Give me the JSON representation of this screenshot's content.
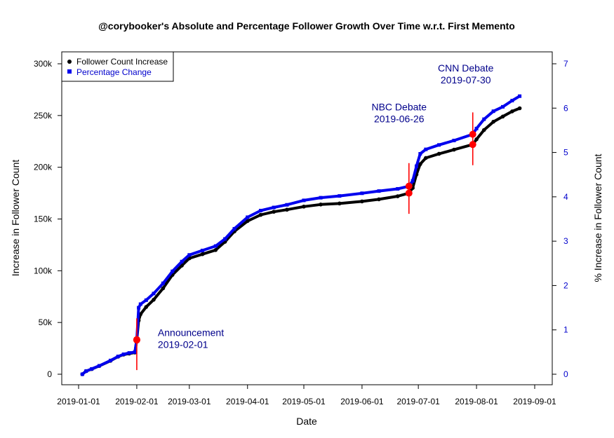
{
  "chart_data": {
    "type": "scatter",
    "title": "@corybooker's Absolute and Percentage Follower Growth Over Time w.r.t. First Memento",
    "xlabel": "Date",
    "ylabel_left": "Increase in Follower Count",
    "ylabel_right": "% Increase in Follower Count",
    "x_ticks": [
      "2019-01-01",
      "2019-02-01",
      "2019-03-01",
      "2019-04-01",
      "2019-05-01",
      "2019-06-01",
      "2019-07-01",
      "2019-08-01",
      "2019-09-01"
    ],
    "y_ticks_left": [
      "0",
      "50k",
      "100k",
      "150k",
      "200k",
      "250k",
      "300k"
    ],
    "y_ticks_left_values": [
      0,
      50000,
      100000,
      150000,
      200000,
      250000,
      300000
    ],
    "y_ticks_right": [
      "0",
      "1",
      "2",
      "3",
      "4",
      "5",
      "6",
      "7"
    ],
    "y_ticks_right_values": [
      0,
      1,
      2,
      3,
      4,
      5,
      6,
      7
    ],
    "xlim": [
      "2019-01-01",
      "2019-09-01"
    ],
    "ylim_left": [
      0,
      300000
    ],
    "ylim_right": [
      0,
      7
    ],
    "legend_position": "top-left",
    "series": [
      {
        "name": "Follower Count Increase",
        "axis": "left",
        "color": "#000000",
        "marker": "circle",
        "points": [
          [
            "2019-01-03",
            0
          ],
          [
            "2019-01-05",
            3000
          ],
          [
            "2019-01-08",
            5000
          ],
          [
            "2019-01-12",
            8000
          ],
          [
            "2019-01-18",
            13000
          ],
          [
            "2019-01-22",
            17000
          ],
          [
            "2019-01-25",
            19000
          ],
          [
            "2019-01-28",
            20000
          ],
          [
            "2019-01-31",
            21000
          ],
          [
            "2019-02-01",
            33000
          ],
          [
            "2019-02-02",
            52000
          ],
          [
            "2019-02-03",
            58000
          ],
          [
            "2019-02-06",
            65000
          ],
          [
            "2019-02-10",
            72000
          ],
          [
            "2019-02-15",
            83000
          ],
          [
            "2019-02-20",
            96000
          ],
          [
            "2019-02-25",
            105000
          ],
          [
            "2019-03-01",
            112000
          ],
          [
            "2019-03-08",
            116000
          ],
          [
            "2019-03-15",
            120000
          ],
          [
            "2019-03-20",
            128000
          ],
          [
            "2019-03-25",
            138000
          ],
          [
            "2019-04-01",
            148000
          ],
          [
            "2019-04-08",
            154000
          ],
          [
            "2019-04-15",
            157000
          ],
          [
            "2019-04-22",
            159000
          ],
          [
            "2019-05-01",
            162000
          ],
          [
            "2019-05-10",
            164000
          ],
          [
            "2019-05-20",
            165000
          ],
          [
            "2019-06-01",
            167000
          ],
          [
            "2019-06-10",
            169000
          ],
          [
            "2019-06-20",
            172000
          ],
          [
            "2019-06-26",
            175000
          ],
          [
            "2019-06-28",
            180000
          ],
          [
            "2019-06-30",
            193000
          ],
          [
            "2019-07-02",
            203000
          ],
          [
            "2019-07-05",
            209000
          ],
          [
            "2019-07-12",
            213000
          ],
          [
            "2019-07-20",
            217000
          ],
          [
            "2019-07-30",
            222000
          ],
          [
            "2019-08-01",
            227000
          ],
          [
            "2019-08-05",
            236000
          ],
          [
            "2019-08-10",
            244000
          ],
          [
            "2019-08-15",
            249000
          ],
          [
            "2019-08-20",
            254000
          ],
          [
            "2019-08-24",
            257000
          ]
        ]
      },
      {
        "name": "Percentage Change",
        "axis": "right",
        "color": "#0000ee",
        "marker": "square",
        "points": [
          [
            "2019-01-03",
            0
          ],
          [
            "2019-01-05",
            0.07
          ],
          [
            "2019-01-08",
            0.12
          ],
          [
            "2019-01-12",
            0.19
          ],
          [
            "2019-01-18",
            0.31
          ],
          [
            "2019-01-22",
            0.4
          ],
          [
            "2019-01-25",
            0.45
          ],
          [
            "2019-01-28",
            0.48
          ],
          [
            "2019-01-31",
            0.5
          ],
          [
            "2019-02-01",
            0.78
          ],
          [
            "2019-02-02",
            1.5
          ],
          [
            "2019-02-03",
            1.58
          ],
          [
            "2019-02-06",
            1.67
          ],
          [
            "2019-02-10",
            1.82
          ],
          [
            "2019-02-15",
            2.05
          ],
          [
            "2019-02-20",
            2.32
          ],
          [
            "2019-02-25",
            2.54
          ],
          [
            "2019-03-01",
            2.69
          ],
          [
            "2019-03-08",
            2.79
          ],
          [
            "2019-03-15",
            2.89
          ],
          [
            "2019-03-20",
            3.05
          ],
          [
            "2019-03-25",
            3.28
          ],
          [
            "2019-04-01",
            3.54
          ],
          [
            "2019-04-08",
            3.69
          ],
          [
            "2019-04-15",
            3.76
          ],
          [
            "2019-04-22",
            3.82
          ],
          [
            "2019-05-01",
            3.92
          ],
          [
            "2019-05-10",
            3.98
          ],
          [
            "2019-05-20",
            4.02
          ],
          [
            "2019-06-01",
            4.08
          ],
          [
            "2019-06-10",
            4.13
          ],
          [
            "2019-06-20",
            4.18
          ],
          [
            "2019-06-26",
            4.24
          ],
          [
            "2019-06-28",
            4.36
          ],
          [
            "2019-06-30",
            4.69
          ],
          [
            "2019-07-02",
            4.97
          ],
          [
            "2019-07-05",
            5.07
          ],
          [
            "2019-07-12",
            5.17
          ],
          [
            "2019-07-20",
            5.27
          ],
          [
            "2019-07-30",
            5.41
          ],
          [
            "2019-08-01",
            5.54
          ],
          [
            "2019-08-05",
            5.75
          ],
          [
            "2019-08-10",
            5.93
          ],
          [
            "2019-08-15",
            6.03
          ],
          [
            "2019-08-20",
            6.17
          ],
          [
            "2019-08-24",
            6.27
          ]
        ]
      }
    ],
    "events": [
      {
        "name": "Announcement",
        "date": "2019-02-01",
        "label_line1": "Announcement",
        "label_line2": "2019-02-01",
        "marker_left_value": 33000,
        "marker_right_value": 0.78,
        "vline_range_left": [
          4000,
          54000
        ]
      },
      {
        "name": "NBC Debate",
        "date": "2019-06-26",
        "label_line1": "NBC Debate",
        "label_line2": "2019-06-26",
        "marker_left_value": 175000,
        "marker_right_value": 4.24,
        "vline_range_left": [
          155000,
          204000
        ]
      },
      {
        "name": "CNN Debate",
        "date": "2019-07-30",
        "label_line1": "CNN Debate",
        "label_line2": "2019-07-30",
        "marker_left_value": 222000,
        "marker_right_value": 5.41,
        "vline_range_left": [
          202000,
          253000
        ]
      }
    ],
    "event_color": "#ff0000",
    "annotation_color": "#00008b",
    "right_axis_color": "#0000cc"
  }
}
